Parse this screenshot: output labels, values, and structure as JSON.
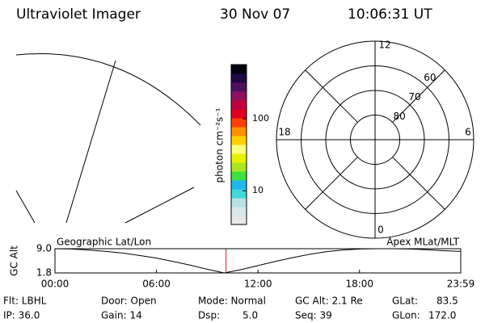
{
  "header": {
    "title": "Ultraviolet Imager",
    "date": "30 Nov 07",
    "time": "10:06:31 UT"
  },
  "colorbar": {
    "label": "photon cm⁻²s⁻¹",
    "log": true,
    "lim": [
      3.4,
      565
    ],
    "ticks": [
      10,
      100
    ],
    "colors": [
      "#e8e8e8",
      "#d8e8ec",
      "#b8e0e8",
      "#40d8d8",
      "#20b8f0",
      "#40e040",
      "#a8e820",
      "#e8f000",
      "#ffff80",
      "#ffd000",
      "#ff9000",
      "#ff4000",
      "#e00020",
      "#c00040",
      "#901060",
      "#501060",
      "#200840",
      "#000010"
    ]
  },
  "polar": {
    "rlim": [
      90,
      50
    ],
    "rticks": [
      60,
      70,
      80
    ],
    "mlt_labels": [
      "12",
      "6",
      "0",
      "18"
    ]
  },
  "chart_data": {
    "type": "line",
    "ylabel": "GC Alt",
    "left_label": "Geographic Lat/Lon",
    "right_label": "Apex MLat/MLT",
    "x": [
      0,
      1,
      2,
      3,
      4,
      5,
      6,
      7,
      8,
      9,
      10,
      11,
      12,
      13,
      14,
      15,
      16,
      17,
      18,
      19,
      20,
      21,
      22,
      23,
      23.983
    ],
    "series": [
      {
        "name": "GC Alt",
        "color": "#000000",
        "values": [
          9.0,
          8.9,
          8.6,
          8.2,
          7.7,
          7.0,
          6.2,
          5.2,
          4.1,
          2.9,
          1.8,
          2.8,
          4.0,
          5.2,
          6.3,
          7.3,
          8.1,
          8.6,
          8.9,
          9.0,
          9.0,
          8.9,
          8.7,
          8.4,
          8.2
        ]
      }
    ],
    "marker_x": 10.109,
    "marker_color": "#d02020",
    "xlim": [
      0,
      23.983
    ],
    "xticks": [
      {
        "value": 0,
        "label": "00:00"
      },
      {
        "value": 6,
        "label": "06:00"
      },
      {
        "value": 12,
        "label": "12:00"
      },
      {
        "value": 18,
        "label": "18:00"
      },
      {
        "value": 23.983,
        "label": "23:59"
      }
    ],
    "ylim": [
      1.8,
      9.0
    ],
    "yticks": [
      {
        "value": 9.0,
        "label": "9.0"
      },
      1.8
    ]
  },
  "footer": [
    [
      "Flt: LBHL",
      "Door: Open",
      "Mode: Normal",
      "GC Alt: 2.1 Re",
      "GLat:",
      "83.5"
    ],
    [
      "IP: 36.0",
      "Gain: 14",
      "Dsp:",
      "5.0",
      "Seq: 39",
      "GLon:",
      "172.0"
    ]
  ]
}
